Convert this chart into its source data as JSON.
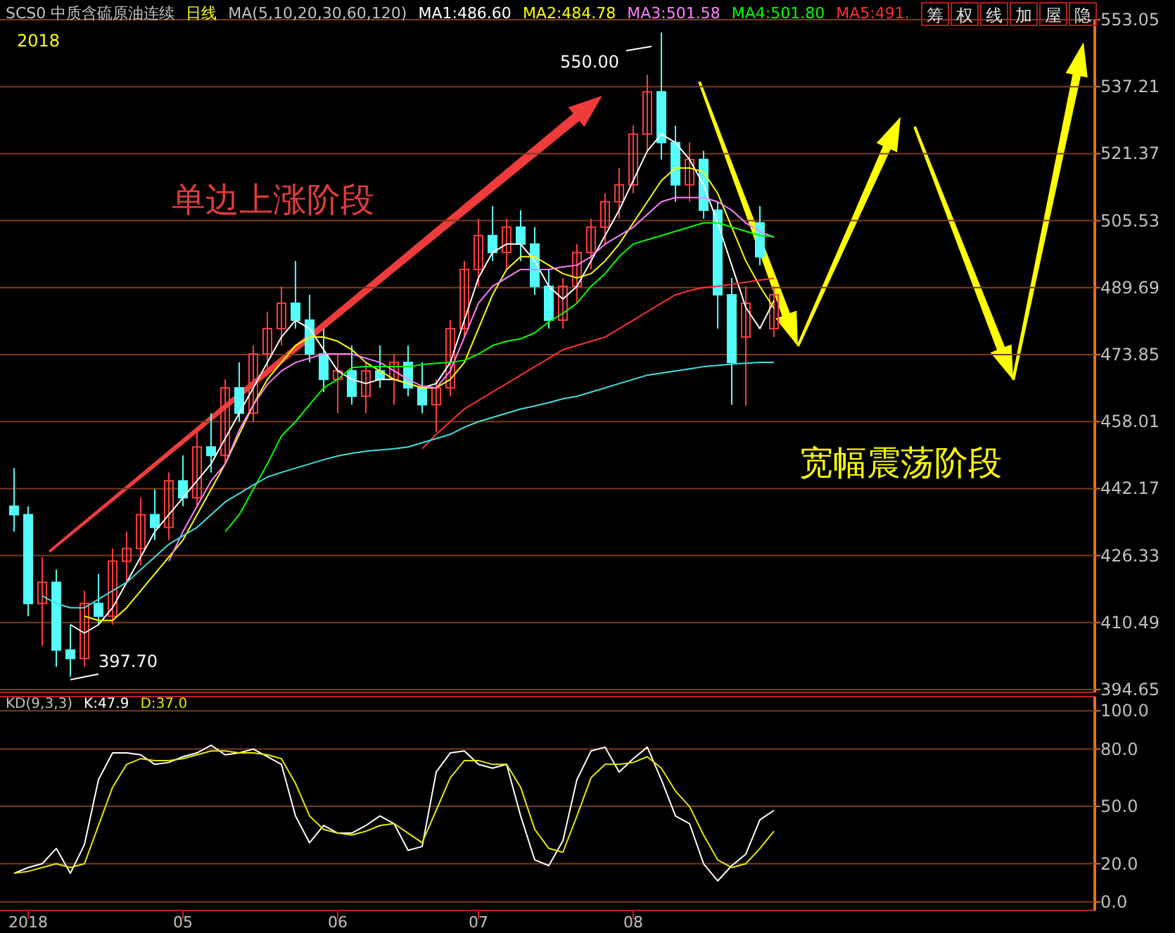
{
  "chart_data": [
    {
      "type": "candlestick",
      "title": "SCS0 中质含硫原油连续",
      "subtitle": "日线",
      "legend_title": "MA(5,10,20,30,60,120)",
      "legend": "top",
      "grid": "y",
      "tick_labels": "y",
      "categories": [
        null,
        null,
        null,
        null,
        null,
        null,
        null,
        null,
        null,
        null,
        null,
        null,
        null,
        null,
        null,
        null,
        null,
        null,
        null,
        null,
        null,
        null,
        null,
        null,
        null,
        null,
        null,
        null,
        null,
        null,
        null,
        null,
        null,
        null,
        null,
        null,
        null,
        null,
        null,
        null,
        null,
        null,
        null,
        null,
        null,
        null,
        null,
        null,
        null,
        null,
        null,
        null,
        null,
        null,
        null
      ],
      "ohlc": [
        [
          438,
          447,
          432,
          436
        ],
        [
          436,
          438,
          412,
          415
        ],
        [
          415,
          426,
          405,
          420
        ],
        [
          420,
          423,
          400,
          404
        ],
        [
          404,
          410,
          397.7,
          402
        ],
        [
          402,
          418,
          400,
          415
        ],
        [
          415,
          422,
          410,
          412
        ],
        [
          412,
          428,
          410,
          425
        ],
        [
          425,
          432,
          420,
          428
        ],
        [
          428,
          440,
          424,
          436
        ],
        [
          436,
          442,
          430,
          433
        ],
        [
          433,
          446,
          430,
          444
        ],
        [
          444,
          450,
          438,
          440
        ],
        [
          440,
          456,
          438,
          452
        ],
        [
          452,
          460,
          446,
          450
        ],
        [
          450,
          468,
          448,
          466
        ],
        [
          466,
          472,
          458,
          460
        ],
        [
          460,
          476,
          458,
          474
        ],
        [
          474,
          484,
          470,
          480
        ],
        [
          480,
          490,
          476,
          486
        ],
        [
          486,
          496,
          480,
          482
        ],
        [
          482,
          488,
          472,
          474
        ],
        [
          474,
          480,
          465,
          468
        ],
        [
          468,
          474,
          460,
          470
        ],
        [
          470,
          476,
          462,
          464
        ],
        [
          464,
          472,
          460,
          470
        ],
        [
          470,
          476,
          466,
          468
        ],
        [
          468,
          474,
          462,
          472
        ],
        [
          472,
          476,
          464,
          466
        ],
        [
          466,
          472,
          460,
          462
        ],
        [
          462,
          468,
          455.6,
          466
        ],
        [
          466,
          482,
          464,
          480
        ],
        [
          480,
          496,
          478,
          494
        ],
        [
          494,
          506,
          490,
          502
        ],
        [
          502,
          509,
          496,
          498
        ],
        [
          498,
          506,
          494,
          504
        ],
        [
          504,
          508,
          496,
          500
        ],
        [
          500,
          504,
          488,
          490
        ],
        [
          490,
          494,
          480,
          482
        ],
        [
          482,
          492,
          480,
          490
        ],
        [
          490,
          500,
          486,
          498
        ],
        [
          498,
          506,
          494,
          504
        ],
        [
          504,
          512,
          500,
          510
        ],
        [
          510,
          518,
          506,
          514
        ],
        [
          514,
          528,
          512,
          526
        ],
        [
          526,
          540,
          522,
          536
        ],
        [
          536,
          550,
          520,
          524
        ],
        [
          524,
          528,
          510,
          514
        ],
        [
          514,
          524,
          510,
          520
        ],
        [
          520,
          522,
          506,
          508
        ],
        [
          508,
          510,
          480,
          488
        ],
        [
          488,
          492,
          462,
          472
        ],
        [
          478,
          490,
          461.7,
          486
        ],
        [
          505,
          509,
          495,
          497
        ],
        [
          480,
          490,
          478,
          488
        ]
      ],
      "series": [
        {
          "name": "MA1:486.60",
          "type": "line",
          "color": "#ffffff",
          "values": [
            null,
            null,
            null,
            null,
            410,
            408,
            410,
            414,
            420,
            426,
            432,
            436,
            440,
            444,
            448,
            454,
            460,
            466,
            472,
            478,
            482,
            480,
            475,
            470,
            468,
            467,
            468,
            468,
            467,
            466,
            467,
            472,
            482,
            492,
            498,
            500,
            500,
            496,
            490,
            487,
            490,
            496,
            502,
            508,
            515,
            522,
            526,
            524,
            520,
            514,
            505,
            495,
            485,
            480,
            486.6
          ]
        },
        {
          "name": "MA2:484.78",
          "type": "line",
          "color": "#ffff00",
          "values": [
            null,
            null,
            null,
            null,
            null,
            412,
            411,
            411,
            414,
            418,
            422,
            426,
            430,
            436,
            442,
            448,
            455,
            462,
            468,
            472,
            476,
            478,
            478,
            477,
            475,
            472,
            470,
            468,
            467,
            466,
            466,
            468,
            472,
            480,
            488,
            494,
            497,
            497,
            495,
            493,
            492,
            493,
            496,
            500,
            505,
            510,
            515,
            518,
            518,
            517,
            512,
            504,
            496,
            490,
            484.8
          ]
        },
        {
          "name": "MA3:501.58",
          "type": "line",
          "color": "#ff80ff",
          "values": [
            null,
            null,
            null,
            null,
            null,
            null,
            null,
            null,
            null,
            null,
            null,
            425,
            432,
            438,
            444,
            448,
            456,
            462,
            466.8,
            470,
            472,
            473,
            474,
            474,
            474,
            473,
            472,
            470,
            468,
            466.4,
            466,
            470,
            478,
            486,
            490,
            492,
            494,
            494,
            494,
            494.6,
            495,
            497,
            500,
            502,
            504,
            507,
            510,
            511,
            511,
            511,
            510,
            508,
            505,
            503,
            501.6
          ]
        },
        {
          "name": "MA4:501.80",
          "type": "line",
          "color": "#00ff00",
          "values": [
            null,
            null,
            null,
            null,
            null,
            null,
            null,
            null,
            null,
            null,
            null,
            null,
            null,
            null,
            null,
            432,
            436,
            442,
            448,
            454.6,
            458,
            462,
            466,
            468,
            470.8,
            471,
            471,
            471,
            471,
            471.5,
            471.8,
            472,
            472.5,
            474,
            476,
            477,
            477.6,
            479,
            481.6,
            483.6,
            486,
            490,
            493,
            497,
            500,
            501,
            502,
            503,
            504,
            505,
            505,
            504,
            503,
            502,
            501.8
          ]
        },
        {
          "name": "MA5:491.",
          "type": "line",
          "color": "#ff3030",
          "values": [
            null,
            null,
            null,
            null,
            null,
            null,
            null,
            null,
            null,
            null,
            null,
            null,
            null,
            null,
            null,
            null,
            null,
            null,
            null,
            null,
            null,
            null,
            null,
            null,
            null,
            null,
            null,
            null,
            null,
            451.6,
            455,
            458,
            461,
            463,
            465,
            467,
            469,
            471,
            473,
            475,
            476,
            477,
            478,
            480,
            482,
            484,
            486,
            488,
            489,
            489.7,
            490,
            490.5,
            491,
            491.5,
            491.9
          ]
        },
        {
          "type": "line",
          "color": "#40e0e0",
          "values": [
            null,
            null,
            416.8,
            415,
            414,
            414,
            416,
            418,
            420,
            423,
            426,
            429,
            431,
            433,
            436,
            439,
            441,
            443,
            444.9,
            446,
            447,
            448,
            449,
            449.9,
            450.5,
            451,
            451.3,
            451.6,
            452,
            453,
            454,
            455,
            456.7,
            458,
            459,
            460,
            461,
            461.7,
            462.5,
            463.4,
            464,
            465,
            466,
            467,
            468,
            469,
            469.5,
            470,
            470.5,
            471,
            471.3,
            471.6,
            471.8,
            472,
            472
          ]
        }
      ],
      "ylim": [
        394.65,
        553.05
      ],
      "yticks": [
        394.65,
        410.49,
        426.33,
        442.17,
        458.01,
        473.85,
        489.69,
        505.53,
        521.37,
        537.21,
        553.05
      ],
      "annotations": [
        "2018",
        "550.00",
        "397.70",
        "单边上涨阶段",
        "宽幅震荡阶段",
        "筹",
        "权",
        "线",
        "加",
        "屋",
        "隐"
      ]
    },
    {
      "type": "line",
      "title": "KD(9,3,3)",
      "legend": "top",
      "grid": "y",
      "categories": [
        null,
        "2018",
        null,
        null,
        null,
        null,
        null,
        null,
        null,
        null,
        null,
        null,
        "05",
        null,
        null,
        null,
        null,
        null,
        null,
        null,
        null,
        null,
        null,
        "06",
        null,
        null,
        null,
        null,
        null,
        null,
        null,
        null,
        null,
        "07",
        null,
        null,
        null,
        null,
        null,
        null,
        null,
        null,
        null,
        null,
        "08",
        null,
        null,
        null,
        null,
        null,
        null,
        null,
        null,
        null,
        null
      ],
      "series": [
        {
          "name": "K:47.9",
          "color": "#ffffff",
          "values": [
            15,
            18,
            20,
            28,
            15,
            30,
            64,
            78,
            78,
            77,
            72,
            73,
            76,
            78,
            82,
            77,
            78,
            80,
            76,
            72,
            45,
            31,
            40,
            36,
            36,
            40,
            45,
            41,
            27,
            29,
            68,
            78,
            79,
            72,
            70,
            72,
            45,
            22,
            19,
            32,
            64,
            79,
            81,
            68,
            75,
            81,
            64,
            45,
            41,
            20,
            11,
            19,
            25,
            43,
            47.9
          ]
        },
        {
          "name": "D:37.0",
          "color": "#e6e600",
          "values": [
            15,
            16,
            18,
            20,
            18,
            20,
            40,
            60,
            72,
            75,
            74,
            74,
            75,
            77,
            79,
            79,
            78,
            78,
            77,
            75,
            62,
            45,
            38,
            36,
            35,
            37,
            40,
            41,
            36,
            31,
            48,
            65,
            74,
            74,
            72,
            72,
            60,
            38,
            28,
            26,
            45,
            65,
            72,
            72,
            73,
            76,
            70,
            58,
            50,
            35,
            22,
            18,
            20,
            28,
            37
          ]
        }
      ],
      "ylim": [
        -3,
        106
      ],
      "yticks": [
        {
          "value": 0,
          "label": "0.0"
        },
        {
          "value": 20,
          "label": "20.0"
        },
        {
          "value": 50,
          "label": "50.0"
        },
        {
          "value": 80,
          "label": "80.0"
        },
        {
          "value": 100,
          "label": "100.0"
        }
      ]
    }
  ]
}
